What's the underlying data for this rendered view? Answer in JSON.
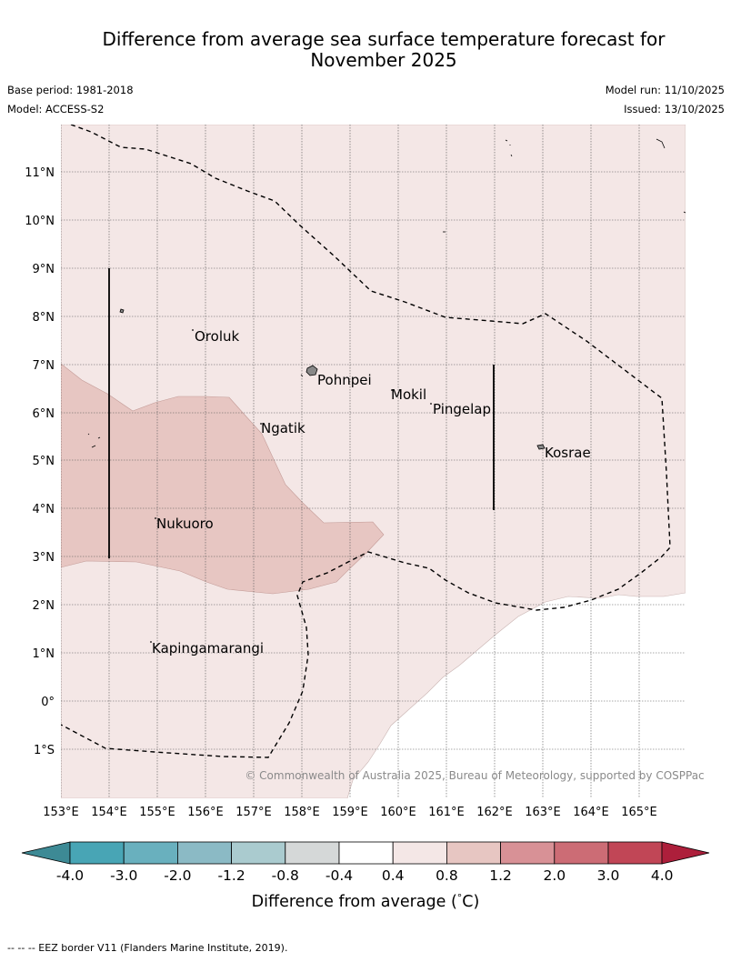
{
  "header": {
    "title_line1": "Difference from average sea surface temperature forecast for",
    "title_line2": "November 2025",
    "base_period": "Base period: 1981-2018",
    "model": "Model: ACCESS-S2",
    "model_run": "Model run: 11/10/2025",
    "issued": "Issued: 13/10/2025"
  },
  "map": {
    "lat_labels": [
      "11°N",
      "10°N",
      "9°N",
      "8°N",
      "7°N",
      "6°N",
      "5°N",
      "4°N",
      "3°N",
      "2°N",
      "1°N",
      "0°",
      "1°S"
    ],
    "lon_labels": [
      "153°E",
      "154°E",
      "155°E",
      "156°E",
      "157°E",
      "158°E",
      "159°E",
      "160°E",
      "161°E",
      "162°E",
      "163°E",
      "164°E",
      "165°E"
    ],
    "places": [
      "Oroluk",
      "Pohnpei",
      "Mokil",
      "Pingelap",
      "Ngatik",
      "Kosrae",
      "Nukuoro",
      "Kapingamarangi"
    ],
    "copyright": "© Commonwealth of Australia 2025, Bureau of Meteorology, supported by COSPPac"
  },
  "colorbar": {
    "ticks": [
      "-4.0",
      "-3.0",
      "-2.0",
      "-1.2",
      "-0.8",
      "-0.4",
      "0.4",
      "0.8",
      "1.2",
      "2.0",
      "3.0",
      "4.0"
    ],
    "colors": [
      "#48a5b5",
      "#69b0be",
      "#8bbac5",
      "#aacbcf",
      "#d5d8d8",
      "#ffffff",
      "#f4e7e6",
      "#e7c6c2",
      "#d89196",
      "#cc6c75",
      "#c14656"
    ],
    "under_color": "#3d8a95",
    "over_color": "#ad1f3b",
    "label": "Difference from average (°C)",
    "label_prefix": "Difference from average (",
    "label_degree": "°",
    "label_suffix": "C)"
  },
  "shading": {
    "light_band_color": "#f4e7e6",
    "medium_band_color": "#e7c6c2"
  },
  "footnote": "--  --  -- EEZ border V11 (Flanders Marine Institute, 2019)."
}
